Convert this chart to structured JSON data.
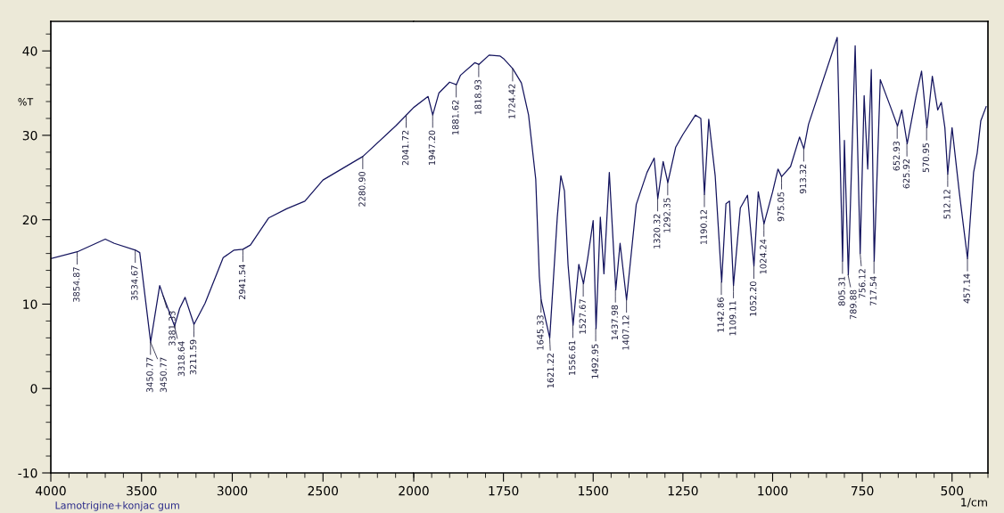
{
  "chart_data": [
    {
      "type": "line",
      "ylabel": "%T",
      "x": [
        4000,
        3854,
        3700,
        3650,
        3534,
        3510,
        3450,
        3400,
        3381,
        3318,
        3290,
        3260,
        3211,
        3150,
        3050,
        2990,
        2941,
        2900,
        2800,
        2700,
        2600,
        2500,
        2280,
        2100,
        2041,
        2000
      ],
      "series": [
        {
          "color": "#14145e",
          "values": [
            15.4,
            16.2,
            17.7,
            17.2,
            16.4,
            16.1,
            5.5,
            12.2,
            11.0,
            7.4,
            9.5,
            10.8,
            7.6,
            10.1,
            15.5,
            16.4,
            16.5,
            17.0,
            20.2,
            21.3,
            22.2,
            24.7,
            27.5,
            31.1,
            32.4,
            33.3
          ]
        }
      ],
      "xlim": [
        4000,
        2000
      ],
      "ylim": [
        -10,
        43.5
      ],
      "xticks": [
        4000,
        3500,
        3000,
        2500,
        2000
      ],
      "yticks": [
        -10,
        0,
        10,
        20,
        30,
        40
      ],
      "grid": false,
      "marker": "none",
      "line_style": "solid",
      "annotations": [
        {
          "text": "3854.87",
          "x": 3854.87,
          "y": 16.2
        },
        {
          "text": "3534.67",
          "x": 3534.67,
          "y": 16.4
        },
        {
          "text": "3450.77",
          "x": 3450.77,
          "y": 5.5
        },
        {
          "text": "3450.77",
          "x": 3450.77,
          "y": 5.5
        },
        {
          "text": "3381.33",
          "x": 3381.33,
          "y": 11.0
        },
        {
          "text": "3318.64",
          "x": 3318.64,
          "y": 7.4
        },
        {
          "text": "3211.59",
          "x": 3211.59,
          "y": 7.6
        },
        {
          "text": "2941.54",
          "x": 2941.54,
          "y": 16.5
        },
        {
          "text": "2280.90",
          "x": 2280.9,
          "y": 27.5
        },
        {
          "text": "2041.72",
          "x": 2041.72,
          "y": 32.4
        },
        "Lamotrigine+konjac gum"
      ]
    },
    {
      "type": "line",
      "xlabel": "1/cm",
      "tick_labels": "x",
      "x": [
        2000,
        1960,
        1947,
        1930,
        1900,
        1881,
        1870,
        1830,
        1818,
        1790,
        1760,
        1750,
        1724,
        1700,
        1680,
        1660,
        1650,
        1645,
        1621,
        1600,
        1590,
        1580,
        1570,
        1556,
        1540,
        1527,
        1515,
        1500,
        1492,
        1480,
        1470,
        1455,
        1437,
        1425,
        1407,
        1380,
        1350,
        1330,
        1320,
        1305,
        1292,
        1270,
        1250,
        1215,
        1200,
        1190,
        1178,
        1160,
        1142,
        1130,
        1120,
        1109,
        1090,
        1070,
        1052,
        1040,
        1024,
        1000,
        985,
        975,
        950,
        925,
        913,
        900,
        820,
        805,
        800,
        789,
        770,
        756,
        745,
        735,
        725,
        717,
        700,
        670,
        652,
        640,
        625,
        600,
        585,
        570,
        555,
        540,
        530,
        520,
        512,
        500,
        480,
        457,
        440,
        430,
        420,
        405
      ],
      "series": [
        {
          "color": "#14145e",
          "values": [
            33.3,
            34.6,
            32.4,
            35.0,
            36.3,
            36.0,
            37.1,
            38.6,
            38.4,
            39.5,
            39.4,
            39.1,
            37.9,
            36.2,
            32.4,
            24.8,
            13.3,
            10.5,
            6.0,
            20.3,
            25.2,
            23.4,
            14.7,
            7.5,
            14.7,
            12.4,
            15.5,
            19.9,
            7.1,
            20.3,
            13.6,
            25.6,
            11.7,
            17.2,
            10.5,
            21.8,
            25.6,
            27.3,
            22.5,
            26.9,
            24.4,
            28.6,
            30.1,
            32.4,
            32.0,
            23.0,
            31.9,
            25.2,
            12.6,
            21.9,
            22.2,
            12.2,
            21.4,
            22.9,
            14.5,
            23.3,
            19.5,
            23.3,
            26.0,
            25.1,
            26.3,
            29.8,
            28.4,
            31.3,
            41.6,
            15.1,
            29.4,
            13.5,
            40.6,
            16.0,
            34.7,
            26.0,
            37.8,
            15.1,
            36.6,
            33.2,
            31.1,
            33.0,
            29.0,
            34.7,
            37.6,
            30.9,
            37.0,
            33.0,
            33.9,
            30.9,
            25.4,
            30.9,
            23.3,
            15.4,
            25.6,
            27.9,
            31.7,
            33.4
          ]
        }
      ],
      "xlim": [
        2000,
        400
      ],
      "ylim": [
        -10,
        43.5
      ],
      "xticks": [
        1750,
        1500,
        1250,
        1000,
        750,
        500
      ],
      "yticks": [
        -10,
        0,
        10,
        20,
        30,
        40
      ],
      "grid": false,
      "marker": "none",
      "line_style": "solid",
      "annotations": [
        {
          "text": "1947.20",
          "x": 1947.2,
          "y": 32.4
        },
        {
          "text": "1881.62",
          "x": 1881.62,
          "y": 36.0
        },
        {
          "text": "1818.93",
          "x": 1818.93,
          "y": 38.4
        },
        {
          "text": "1724.42",
          "x": 1724.42,
          "y": 37.9
        },
        {
          "text": "1645.33",
          "x": 1645.33,
          "y": 10.5
        },
        {
          "text": "1621.22",
          "x": 1621.22,
          "y": 6.0
        },
        {
          "text": "1556.61",
          "x": 1556.61,
          "y": 7.5
        },
        {
          "text": "1527.67",
          "x": 1527.67,
          "y": 12.4
        },
        {
          "text": "1492.95",
          "x": 1492.95,
          "y": 7.1
        },
        {
          "text": "1437.98",
          "x": 1437.98,
          "y": 11.7
        },
        {
          "text": "1407.12",
          "x": 1407.12,
          "y": 10.5
        },
        {
          "text": "1320.32",
          "x": 1320.32,
          "y": 22.5
        },
        {
          "text": "1292.35",
          "x": 1292.35,
          "y": 24.4
        },
        {
          "text": "1190.12",
          "x": 1190.12,
          "y": 23.0
        },
        {
          "text": "1142.86",
          "x": 1142.86,
          "y": 12.6
        },
        {
          "text": "1109.11",
          "x": 1109.11,
          "y": 12.2
        },
        {
          "text": "1052.20",
          "x": 1052.2,
          "y": 14.5
        },
        {
          "text": "1024.24",
          "x": 1024.24,
          "y": 19.5
        },
        {
          "text": "975.05",
          "x": 975.05,
          "y": 25.1
        },
        {
          "text": "913.32",
          "x": 913.32,
          "y": 28.4
        },
        {
          "text": "805.31",
          "x": 805.31,
          "y": 15.1
        },
        {
          "text": "789.88",
          "x": 789.88,
          "y": 13.5
        },
        {
          "text": "756.12",
          "x": 756.12,
          "y": 16.0
        },
        {
          "text": "717.54",
          "x": 717.54,
          "y": 15.1
        },
        {
          "text": "652.93",
          "x": 652.93,
          "y": 31.1
        },
        {
          "text": "625.92",
          "x": 625.92,
          "y": 29.0
        },
        {
          "text": "570.95",
          "x": 570.95,
          "y": 30.9
        },
        {
          "text": "512.12",
          "x": 512.12,
          "y": 25.4
        },
        {
          "text": "457.14",
          "x": 457.14,
          "y": 15.4
        }
      ]
    }
  ]
}
